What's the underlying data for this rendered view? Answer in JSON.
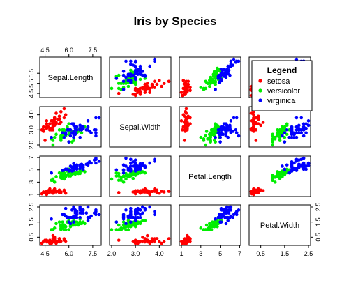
{
  "chart_data": {
    "type": "scatter",
    "title": "Iris by Species",
    "variables": [
      "Sepal.Length",
      "Sepal.Width",
      "Petal.Length",
      "Petal.Width"
    ],
    "ranges": [
      [
        4.3,
        7.9
      ],
      [
        2.0,
        4.4
      ],
      [
        1.0,
        6.9
      ],
      [
        0.1,
        2.5
      ]
    ],
    "ticks": [
      [
        "4.5",
        "6.0",
        "7.5"
      ],
      [
        "2.0",
        "3.0",
        "4.0"
      ],
      [
        "1",
        "3",
        "5",
        "7"
      ],
      [
        "0.5",
        "1.5",
        "2.5"
      ]
    ],
    "left_ticks": [
      [
        "4.5",
        "5.5",
        "6.5"
      ],
      [
        "2.0",
        "3.0",
        "4.0"
      ],
      [
        "1",
        "3",
        "5",
        "7"
      ],
      [
        "0.5",
        "1.5",
        "2.5"
      ]
    ],
    "top_ticks": [
      "4.5",
      "6.0",
      "7.5"
    ],
    "bottom_ticks": [
      [
        "4.5",
        "6.0",
        "7.5"
      ],
      [
        "2.0",
        "3.0",
        "4.0"
      ],
      [
        "1",
        "3",
        "5",
        "7"
      ],
      [
        "0.5",
        "1.5",
        "2.5"
      ]
    ],
    "right_ticks": [
      "0.5",
      "1.5",
      "2.5"
    ],
    "legend": {
      "title": "Legend",
      "position": "top-right",
      "entries": [
        {
          "name": "setosa",
          "color": "#ff0000"
        },
        {
          "name": "versicolor",
          "color": "#00ee00"
        },
        {
          "name": "virginica",
          "color": "#0000ff"
        }
      ]
    },
    "series": [
      {
        "name": "setosa",
        "color": "#ff0000",
        "points": [
          [
            5.1,
            3.5,
            1.4,
            0.2
          ],
          [
            4.9,
            3.0,
            1.4,
            0.2
          ],
          [
            4.7,
            3.2,
            1.3,
            0.2
          ],
          [
            4.6,
            3.1,
            1.5,
            0.2
          ],
          [
            5.0,
            3.6,
            1.4,
            0.2
          ],
          [
            5.4,
            3.9,
            1.7,
            0.4
          ],
          [
            4.6,
            3.4,
            1.4,
            0.3
          ],
          [
            5.0,
            3.4,
            1.5,
            0.2
          ],
          [
            4.4,
            2.9,
            1.4,
            0.2
          ],
          [
            4.9,
            3.1,
            1.5,
            0.1
          ],
          [
            5.4,
            3.7,
            1.5,
            0.2
          ],
          [
            4.8,
            3.4,
            1.6,
            0.2
          ],
          [
            4.8,
            3.0,
            1.4,
            0.1
          ],
          [
            4.3,
            3.0,
            1.1,
            0.1
          ],
          [
            5.8,
            4.0,
            1.2,
            0.2
          ],
          [
            5.7,
            4.4,
            1.5,
            0.4
          ],
          [
            5.4,
            3.9,
            1.3,
            0.4
          ],
          [
            5.1,
            3.5,
            1.4,
            0.3
          ],
          [
            5.7,
            3.8,
            1.7,
            0.3
          ],
          [
            5.1,
            3.8,
            1.5,
            0.3
          ],
          [
            5.4,
            3.4,
            1.7,
            0.2
          ],
          [
            5.1,
            3.7,
            1.5,
            0.4
          ],
          [
            4.6,
            3.6,
            1.0,
            0.2
          ],
          [
            5.1,
            3.3,
            1.7,
            0.5
          ],
          [
            4.8,
            3.4,
            1.9,
            0.2
          ],
          [
            5.0,
            3.0,
            1.6,
            0.2
          ],
          [
            5.0,
            3.4,
            1.6,
            0.4
          ],
          [
            5.2,
            3.5,
            1.5,
            0.2
          ],
          [
            5.2,
            3.4,
            1.4,
            0.2
          ],
          [
            4.7,
            3.2,
            1.6,
            0.2
          ],
          [
            4.8,
            3.1,
            1.6,
            0.2
          ],
          [
            5.4,
            3.4,
            1.5,
            0.4
          ],
          [
            5.2,
            4.1,
            1.5,
            0.1
          ],
          [
            5.5,
            4.2,
            1.4,
            0.2
          ],
          [
            4.9,
            3.1,
            1.5,
            0.2
          ],
          [
            5.0,
            3.2,
            1.2,
            0.2
          ],
          [
            5.5,
            3.5,
            1.3,
            0.2
          ],
          [
            4.9,
            3.6,
            1.4,
            0.1
          ],
          [
            4.4,
            3.0,
            1.3,
            0.2
          ],
          [
            5.1,
            3.4,
            1.5,
            0.2
          ],
          [
            5.0,
            3.5,
            1.3,
            0.3
          ],
          [
            4.5,
            2.3,
            1.3,
            0.3
          ],
          [
            4.4,
            3.2,
            1.3,
            0.2
          ],
          [
            5.0,
            3.5,
            1.6,
            0.6
          ],
          [
            5.1,
            3.8,
            1.9,
            0.4
          ],
          [
            4.8,
            3.0,
            1.4,
            0.3
          ],
          [
            5.1,
            3.8,
            1.6,
            0.2
          ],
          [
            4.6,
            3.2,
            1.4,
            0.2
          ],
          [
            5.3,
            3.7,
            1.5,
            0.2
          ],
          [
            5.0,
            3.3,
            1.4,
            0.2
          ]
        ]
      },
      {
        "name": "versicolor",
        "color": "#00ee00",
        "points": [
          [
            7.0,
            3.2,
            4.7,
            1.4
          ],
          [
            6.4,
            3.2,
            4.5,
            1.5
          ],
          [
            6.9,
            3.1,
            4.9,
            1.5
          ],
          [
            5.5,
            2.3,
            4.0,
            1.3
          ],
          [
            6.5,
            2.8,
            4.6,
            1.5
          ],
          [
            5.7,
            2.8,
            4.5,
            1.3
          ],
          [
            6.3,
            3.3,
            4.7,
            1.6
          ],
          [
            4.9,
            2.4,
            3.3,
            1.0
          ],
          [
            6.6,
            2.9,
            4.6,
            1.3
          ],
          [
            5.2,
            2.7,
            3.9,
            1.4
          ],
          [
            5.0,
            2.0,
            3.5,
            1.0
          ],
          [
            5.9,
            3.0,
            4.2,
            1.5
          ],
          [
            6.0,
            2.2,
            4.0,
            1.0
          ],
          [
            6.1,
            2.9,
            4.7,
            1.4
          ],
          [
            5.6,
            2.9,
            3.6,
            1.3
          ],
          [
            6.7,
            3.1,
            4.4,
            1.4
          ],
          [
            5.6,
            3.0,
            4.5,
            1.5
          ],
          [
            5.8,
            2.7,
            4.1,
            1.0
          ],
          [
            6.2,
            2.2,
            4.5,
            1.5
          ],
          [
            5.6,
            2.5,
            3.9,
            1.1
          ],
          [
            5.9,
            3.2,
            4.8,
            1.8
          ],
          [
            6.1,
            2.8,
            4.0,
            1.3
          ],
          [
            6.3,
            2.5,
            4.9,
            1.5
          ],
          [
            6.1,
            2.8,
            4.7,
            1.2
          ],
          [
            6.4,
            2.9,
            4.3,
            1.3
          ],
          [
            6.6,
            3.0,
            4.4,
            1.4
          ],
          [
            6.8,
            2.8,
            4.8,
            1.4
          ],
          [
            6.7,
            3.0,
            5.0,
            1.7
          ],
          [
            6.0,
            2.9,
            4.5,
            1.5
          ],
          [
            5.7,
            2.6,
            3.5,
            1.0
          ],
          [
            5.5,
            2.4,
            3.8,
            1.1
          ],
          [
            5.5,
            2.4,
            3.7,
            1.0
          ],
          [
            5.8,
            2.7,
            3.9,
            1.2
          ],
          [
            6.0,
            2.7,
            5.1,
            1.6
          ],
          [
            5.4,
            3.0,
            4.5,
            1.5
          ],
          [
            6.0,
            3.4,
            4.5,
            1.6
          ],
          [
            6.7,
            3.1,
            4.7,
            1.5
          ],
          [
            6.3,
            2.3,
            4.4,
            1.3
          ],
          [
            5.6,
            3.0,
            4.1,
            1.3
          ],
          [
            5.5,
            2.5,
            4.0,
            1.3
          ],
          [
            5.5,
            2.6,
            4.4,
            1.2
          ],
          [
            6.1,
            3.0,
            4.6,
            1.4
          ],
          [
            5.8,
            2.6,
            4.0,
            1.2
          ],
          [
            5.0,
            2.3,
            3.3,
            1.0
          ],
          [
            5.6,
            2.7,
            4.2,
            1.3
          ],
          [
            5.7,
            3.0,
            4.2,
            1.2
          ],
          [
            5.7,
            2.9,
            4.2,
            1.3
          ],
          [
            6.2,
            2.9,
            4.3,
            1.3
          ],
          [
            5.1,
            2.5,
            3.0,
            1.1
          ],
          [
            5.7,
            2.8,
            4.1,
            1.3
          ]
        ]
      },
      {
        "name": "virginica",
        "color": "#0000ff",
        "points": [
          [
            6.3,
            3.3,
            6.0,
            2.5
          ],
          [
            5.8,
            2.7,
            5.1,
            1.9
          ],
          [
            7.1,
            3.0,
            5.9,
            2.1
          ],
          [
            6.3,
            2.9,
            5.6,
            1.8
          ],
          [
            6.5,
            3.0,
            5.8,
            2.2
          ],
          [
            7.6,
            3.0,
            6.6,
            2.1
          ],
          [
            4.9,
            2.5,
            4.5,
            1.7
          ],
          [
            7.3,
            2.9,
            6.3,
            1.8
          ],
          [
            6.7,
            2.5,
            5.8,
            1.8
          ],
          [
            7.2,
            3.6,
            6.1,
            2.5
          ],
          [
            6.5,
            3.2,
            5.1,
            2.0
          ],
          [
            6.4,
            2.7,
            5.3,
            1.9
          ],
          [
            6.8,
            3.0,
            5.5,
            2.1
          ],
          [
            5.7,
            2.5,
            5.0,
            2.0
          ],
          [
            5.8,
            2.8,
            5.1,
            2.4
          ],
          [
            6.4,
            3.2,
            5.3,
            2.3
          ],
          [
            6.5,
            3.0,
            5.5,
            1.8
          ],
          [
            7.7,
            3.8,
            6.7,
            2.2
          ],
          [
            7.7,
            2.6,
            6.9,
            2.3
          ],
          [
            6.0,
            2.2,
            5.0,
            1.5
          ],
          [
            6.9,
            3.2,
            5.7,
            2.3
          ],
          [
            5.6,
            2.8,
            4.9,
            2.0
          ],
          [
            7.7,
            2.8,
            6.7,
            2.0
          ],
          [
            6.3,
            2.7,
            4.9,
            1.8
          ],
          [
            6.7,
            3.3,
            5.7,
            2.1
          ],
          [
            7.2,
            3.2,
            6.0,
            1.8
          ],
          [
            6.2,
            2.8,
            4.8,
            1.8
          ],
          [
            6.1,
            3.0,
            4.9,
            1.8
          ],
          [
            6.4,
            2.8,
            5.6,
            2.1
          ],
          [
            7.2,
            3.0,
            5.8,
            1.6
          ],
          [
            7.4,
            2.8,
            6.1,
            1.9
          ],
          [
            7.9,
            3.8,
            6.4,
            2.0
          ],
          [
            6.4,
            2.8,
            5.6,
            2.2
          ],
          [
            6.3,
            2.8,
            5.1,
            1.5
          ],
          [
            6.1,
            2.6,
            5.6,
            1.4
          ],
          [
            7.7,
            3.0,
            6.1,
            2.3
          ],
          [
            6.3,
            3.4,
            5.6,
            2.4
          ],
          [
            6.4,
            3.1,
            5.5,
            1.8
          ],
          [
            6.0,
            3.0,
            4.8,
            1.8
          ],
          [
            6.9,
            3.1,
            5.4,
            2.1
          ],
          [
            6.7,
            3.1,
            5.6,
            2.4
          ],
          [
            6.9,
            3.1,
            5.1,
            2.3
          ],
          [
            5.8,
            2.7,
            5.1,
            1.9
          ],
          [
            6.8,
            3.2,
            5.9,
            2.3
          ],
          [
            6.7,
            3.3,
            5.7,
            2.5
          ],
          [
            6.7,
            3.0,
            5.2,
            2.3
          ],
          [
            6.3,
            2.5,
            5.0,
            1.9
          ],
          [
            6.5,
            3.0,
            5.2,
            2.0
          ],
          [
            6.2,
            3.4,
            5.4,
            2.3
          ],
          [
            5.9,
            3.0,
            5.1,
            1.8
          ]
        ]
      }
    ]
  }
}
